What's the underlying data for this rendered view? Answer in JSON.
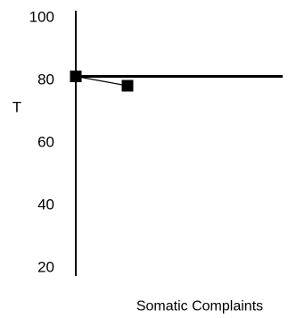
{
  "chart_data": {
    "type": "line",
    "ylabel": "T",
    "xlabel": "Somatic Complaints",
    "ylim": [
      20,
      100
    ],
    "yticks": [
      {
        "value": 100,
        "label": "100"
      },
      {
        "value": 80,
        "label": "80"
      },
      {
        "value": 60,
        "label": "60"
      },
      {
        "value": 40,
        "label": "40"
      },
      {
        "value": 20,
        "label": "20"
      }
    ],
    "reference_line": {
      "y": 81
    },
    "series": [
      {
        "points": [
          {
            "x": 0,
            "y": 81
          },
          {
            "x": 1,
            "y": 78
          }
        ]
      }
    ],
    "colors": {
      "ink": "#000000",
      "background": "#ffffff"
    },
    "grid": false,
    "marker": "square"
  }
}
